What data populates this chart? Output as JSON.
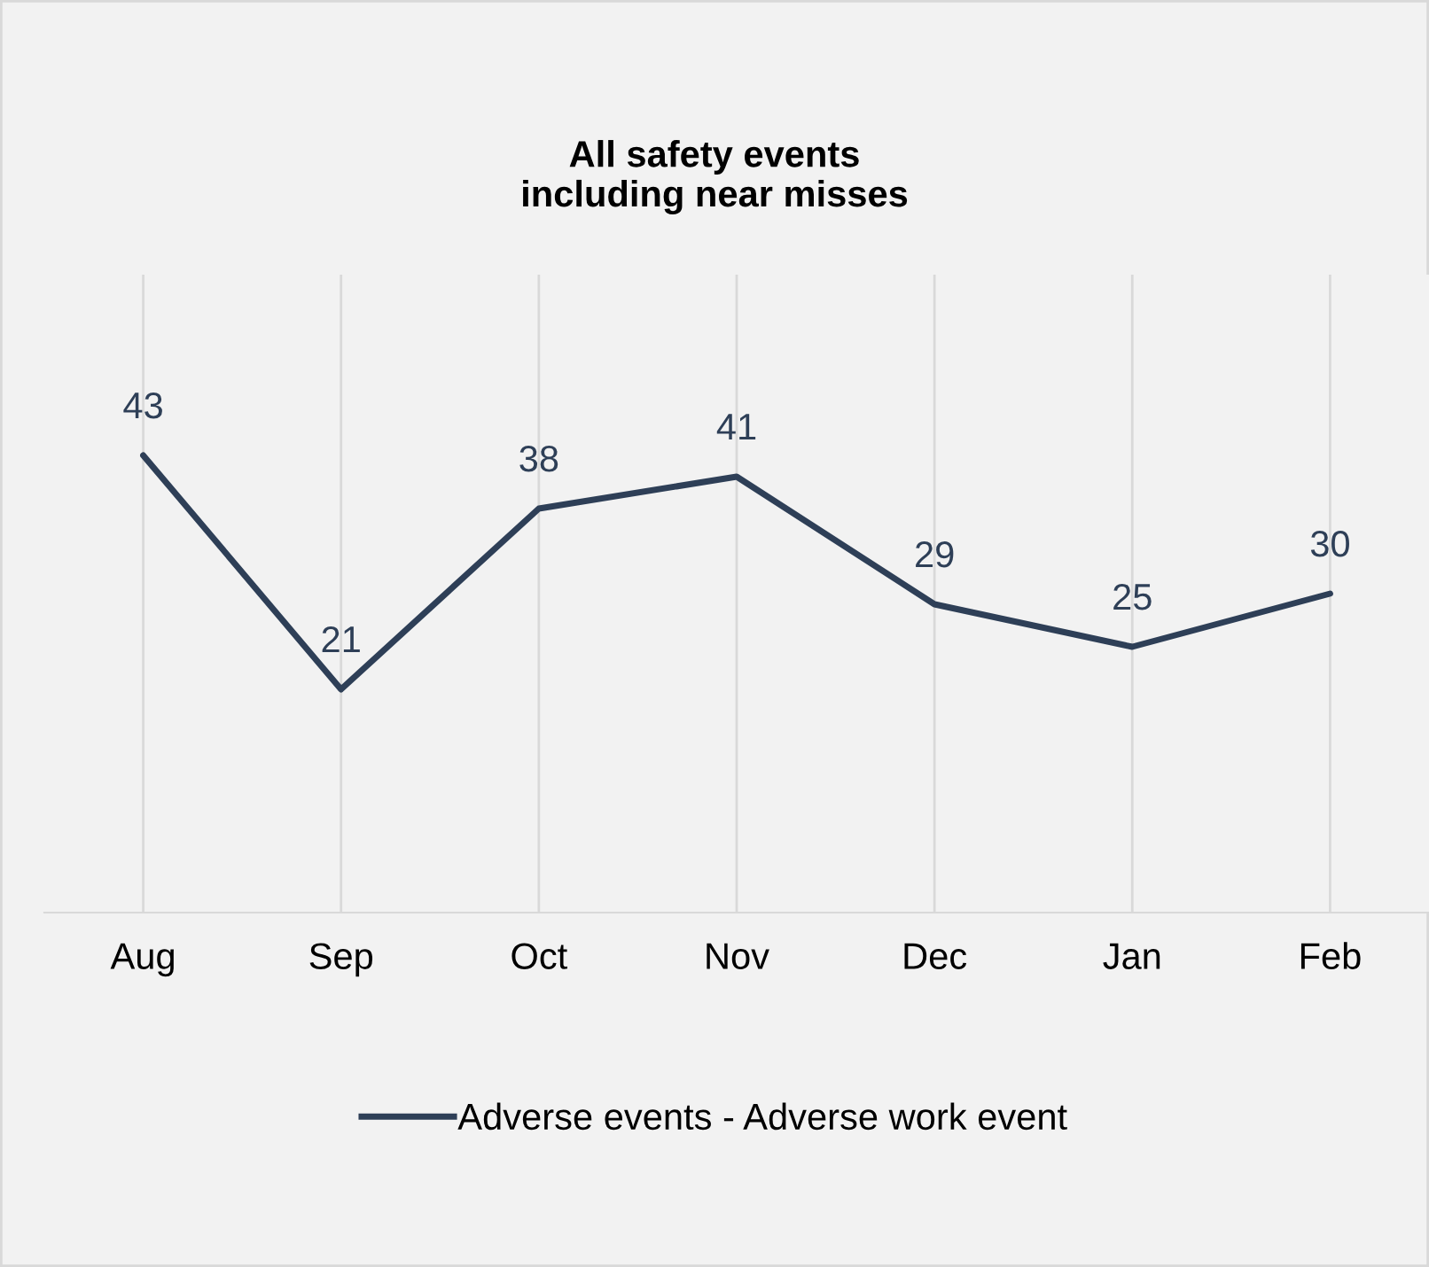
{
  "chart_data": {
    "type": "line",
    "title": "All safety events\nincluding near misses",
    "categories": [
      "Aug",
      "Sep",
      "Oct",
      "Nov",
      "Dec",
      "Jan",
      "Feb"
    ],
    "series": [
      {
        "name": "Adverse events - Adverse work event",
        "color": "#2e3f57",
        "values": [
          43,
          21,
          38,
          41,
          29,
          25,
          30
        ]
      }
    ],
    "ylim": [
      0,
      60
    ],
    "tick_labels": "x",
    "data_labels": true,
    "grid": "x",
    "legend": "bottom",
    "marker": "none",
    "line_style": "solid"
  }
}
